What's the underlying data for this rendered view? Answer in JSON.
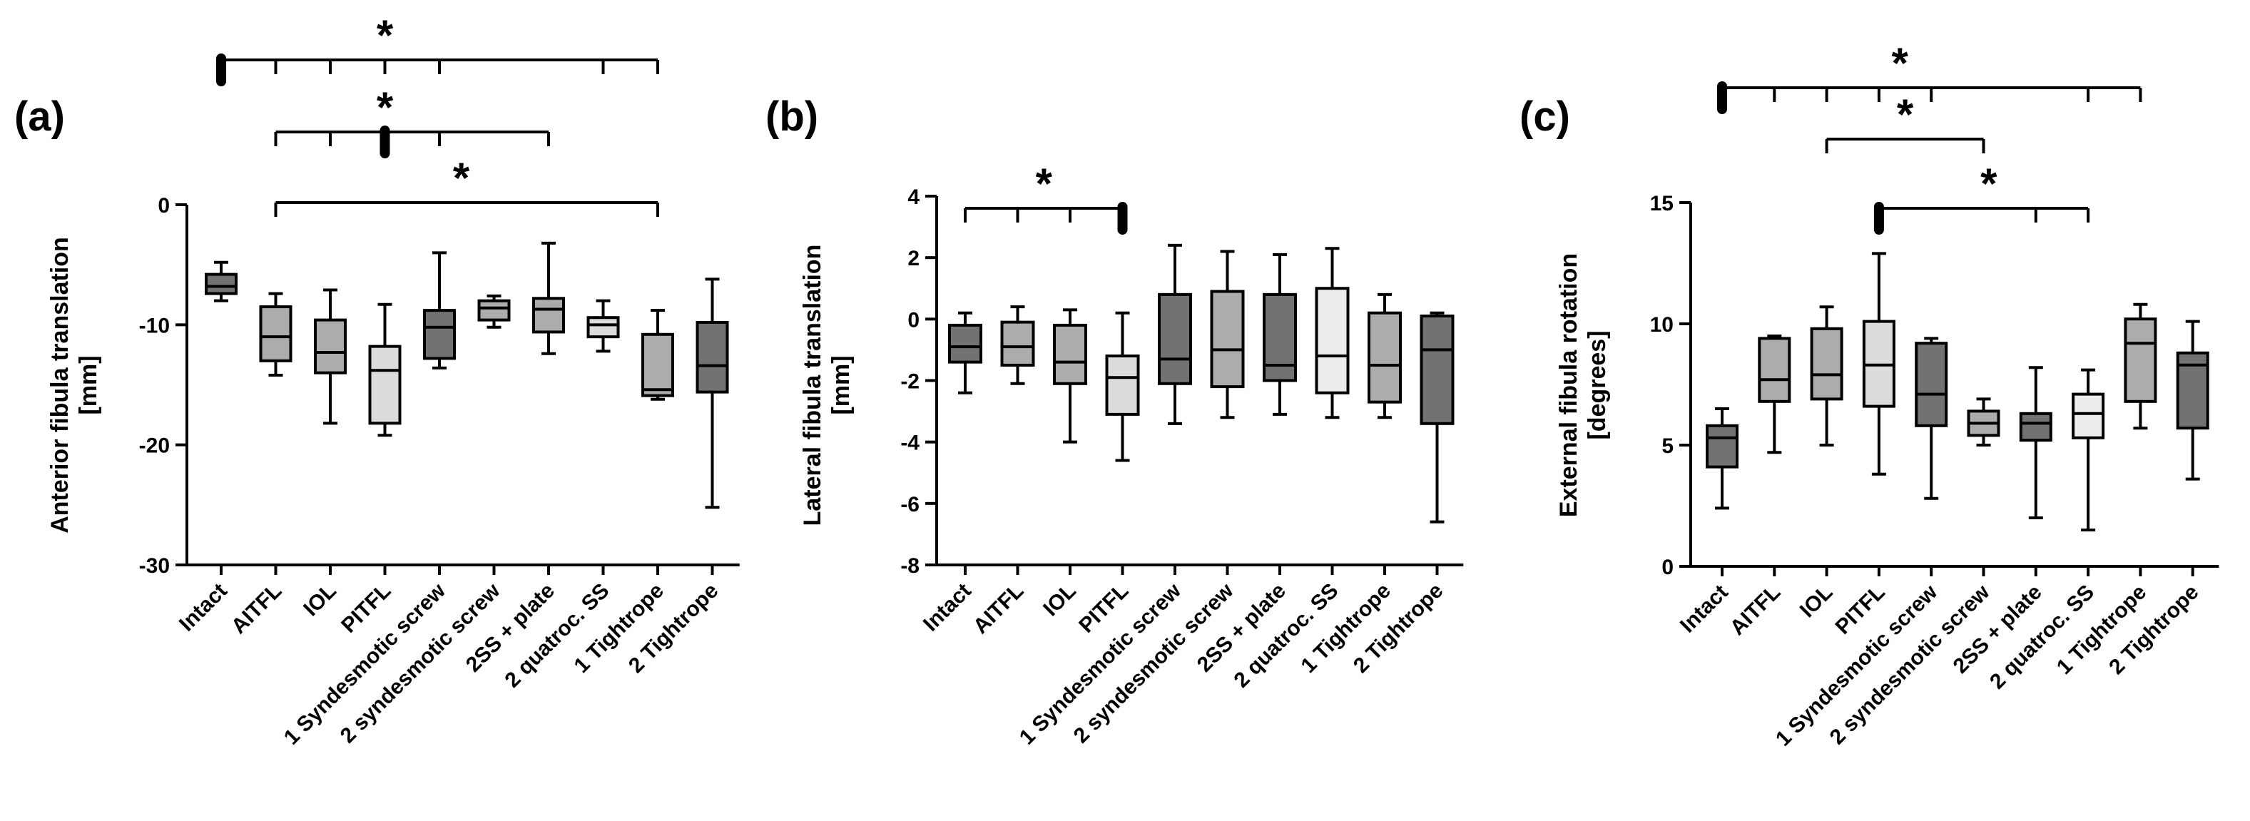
{
  "colors": {
    "dark": "#727272",
    "mid": "#acacac",
    "light": "#dcdcdc",
    "lighter": "#ececec",
    "ink": "#000000"
  },
  "chart_data": [
    {
      "type": "box",
      "panel_label": "(a)",
      "title": "",
      "ylabel_line1": "Anterior fibula translation",
      "ylabel_line2": "[mm]",
      "ylim": [
        -30,
        0
      ],
      "yticks": [
        0,
        -10,
        -20,
        -30
      ],
      "ytick_labels": [
        "0",
        "-10",
        "-20",
        "-30"
      ],
      "categories": [
        "Intact",
        "AITFL",
        "IOL",
        "PITFL",
        "1 Syndesmotic screw",
        "2 syndesmotic screw",
        "2SS + plate",
        "2 quatroc. SS",
        "1 Tightrope",
        "2 Tightrope"
      ],
      "boxes": [
        {
          "min": -8.0,
          "q1": -7.4,
          "median": -6.8,
          "q3": -5.8,
          "max": -4.8,
          "fill": "dark"
        },
        {
          "min": -14.2,
          "q1": -13.0,
          "median": -11.0,
          "q3": -8.5,
          "max": -7.4,
          "fill": "mid"
        },
        {
          "min": -18.2,
          "q1": -14.0,
          "median": -12.3,
          "q3": -9.6,
          "max": -7.1,
          "fill": "mid"
        },
        {
          "min": -19.2,
          "q1": -18.2,
          "median": -13.8,
          "q3": -11.8,
          "max": -8.3,
          "fill": "light"
        },
        {
          "min": -13.6,
          "q1": -12.8,
          "median": -10.2,
          "q3": -8.8,
          "max": -4.0,
          "fill": "dark"
        },
        {
          "min": -10.2,
          "q1": -9.6,
          "median": -8.6,
          "q3": -8.0,
          "max": -7.6,
          "fill": "mid"
        },
        {
          "min": -12.4,
          "q1": -10.6,
          "median": -8.7,
          "q3": -7.8,
          "max": -3.2,
          "fill": "mid"
        },
        {
          "min": -12.2,
          "q1": -11.0,
          "median": -10.0,
          "q3": -9.4,
          "max": -8.0,
          "fill": "light"
        },
        {
          "min": -16.2,
          "q1": -15.9,
          "median": -15.4,
          "q3": -10.8,
          "max": -8.8,
          "fill": "mid"
        },
        {
          "min": -25.2,
          "q1": -15.6,
          "median": -13.4,
          "q3": -9.8,
          "max": -6.2,
          "fill": "dark"
        }
      ],
      "brackets": [
        {
          "level": 0,
          "from": 0,
          "ticks": [
            1,
            2,
            3,
            4,
            7,
            8
          ],
          "star": 3,
          "marker": "from"
        },
        {
          "level": 1,
          "from": 1,
          "ticks": [
            2,
            3,
            4,
            6
          ],
          "star": 3,
          "marker": 3
        },
        {
          "level": 2,
          "from": 1,
          "ticks": [
            8
          ],
          "star": 4.4,
          "marker": null
        }
      ]
    },
    {
      "type": "box",
      "panel_label": "(b)",
      "title": "",
      "ylabel_line1": "Lateral fibula translation",
      "ylabel_line2": "[mm]",
      "ylim": [
        -8,
        4
      ],
      "yticks": [
        4,
        2,
        0,
        -2,
        -4,
        -6,
        -8
      ],
      "ytick_labels": [
        "4",
        "2",
        "0",
        "-2",
        "-4",
        "-6",
        "-8"
      ],
      "categories": [
        "Intact",
        "AITFL",
        "IOL",
        "PITFL",
        "1 Syndesmotic screw",
        "2 syndesmotic screw",
        "2SS + plate",
        "2 quatroc. SS",
        "1 Tightrope",
        "2 Tightrope"
      ],
      "boxes": [
        {
          "min": -2.4,
          "q1": -1.4,
          "median": -0.9,
          "q3": -0.2,
          "max": 0.2,
          "fill": "dark"
        },
        {
          "min": -2.1,
          "q1": -1.5,
          "median": -0.9,
          "q3": -0.1,
          "max": 0.4,
          "fill": "mid"
        },
        {
          "min": -4.0,
          "q1": -2.1,
          "median": -1.4,
          "q3": -0.2,
          "max": 0.3,
          "fill": "mid"
        },
        {
          "min": -4.6,
          "q1": -3.1,
          "median": -1.9,
          "q3": -1.2,
          "max": 0.2,
          "fill": "light"
        },
        {
          "min": -3.4,
          "q1": -2.1,
          "median": -1.3,
          "q3": 0.8,
          "max": 2.4,
          "fill": "dark"
        },
        {
          "min": -3.2,
          "q1": -2.2,
          "median": -1.0,
          "q3": 0.9,
          "max": 2.2,
          "fill": "mid"
        },
        {
          "min": -3.1,
          "q1": -2.0,
          "median": -1.5,
          "q3": 0.8,
          "max": 2.1,
          "fill": "dark"
        },
        {
          "min": -3.2,
          "q1": -2.4,
          "median": -1.2,
          "q3": 1.0,
          "max": 2.3,
          "fill": "lighter"
        },
        {
          "min": -3.2,
          "q1": -2.7,
          "median": -1.5,
          "q3": 0.2,
          "max": 0.8,
          "fill": "mid"
        },
        {
          "min": -6.6,
          "q1": -3.4,
          "median": -1.0,
          "q3": 0.1,
          "max": 0.2,
          "fill": "dark"
        }
      ],
      "brackets": [
        {
          "level": 0,
          "from": 0,
          "ticks": [
            1,
            2,
            3
          ],
          "star": 1.5,
          "marker": 3
        }
      ]
    },
    {
      "type": "box",
      "panel_label": "(c)",
      "title": "",
      "ylabel_line1": "External fibula rotation",
      "ylabel_line2": "[degrees]",
      "ylim": [
        0,
        15
      ],
      "yticks": [
        15,
        10,
        5,
        0
      ],
      "ytick_labels": [
        "15",
        "10",
        "5",
        "0"
      ],
      "categories": [
        "Intact",
        "AITFL",
        "IOL",
        "PITFL",
        "1 Syndesmotic screw",
        "2 syndesmotic screw",
        "2SS + plate",
        "2 quatroc. SS",
        "1 Tightrope",
        "2 Tightrope"
      ],
      "boxes": [
        {
          "min": 2.4,
          "q1": 4.1,
          "median": 5.3,
          "q3": 5.8,
          "max": 6.5,
          "fill": "dark"
        },
        {
          "min": 4.7,
          "q1": 6.8,
          "median": 7.7,
          "q3": 9.4,
          "max": 9.5,
          "fill": "mid"
        },
        {
          "min": 5.0,
          "q1": 6.9,
          "median": 7.9,
          "q3": 9.8,
          "max": 10.7,
          "fill": "mid"
        },
        {
          "min": 3.8,
          "q1": 6.6,
          "median": 8.3,
          "q3": 10.1,
          "max": 12.9,
          "fill": "light"
        },
        {
          "min": 2.8,
          "q1": 5.8,
          "median": 7.1,
          "q3": 9.2,
          "max": 9.4,
          "fill": "dark"
        },
        {
          "min": 5.0,
          "q1": 5.4,
          "median": 5.9,
          "q3": 6.4,
          "max": 6.9,
          "fill": "mid"
        },
        {
          "min": 2.0,
          "q1": 5.2,
          "median": 5.9,
          "q3": 6.3,
          "max": 8.2,
          "fill": "dark"
        },
        {
          "min": 1.5,
          "q1": 5.3,
          "median": 6.3,
          "q3": 7.1,
          "max": 8.1,
          "fill": "lighter"
        },
        {
          "min": 5.7,
          "q1": 6.8,
          "median": 9.2,
          "q3": 10.2,
          "max": 10.8,
          "fill": "mid"
        },
        {
          "min": 3.6,
          "q1": 5.7,
          "median": 8.3,
          "q3": 8.8,
          "max": 10.1,
          "fill": "dark"
        }
      ],
      "brackets": [
        {
          "level": 0,
          "from": 0,
          "ticks": [
            1,
            2,
            3,
            4,
            7,
            8
          ],
          "star": 3.4,
          "marker": "from"
        },
        {
          "level": 1,
          "from": 2,
          "ticks": [
            5
          ],
          "star": 3.5,
          "marker": null
        },
        {
          "level": 2,
          "from": 3,
          "ticks": [
            6,
            7
          ],
          "star": 5.1,
          "marker": "from"
        }
      ]
    }
  ]
}
